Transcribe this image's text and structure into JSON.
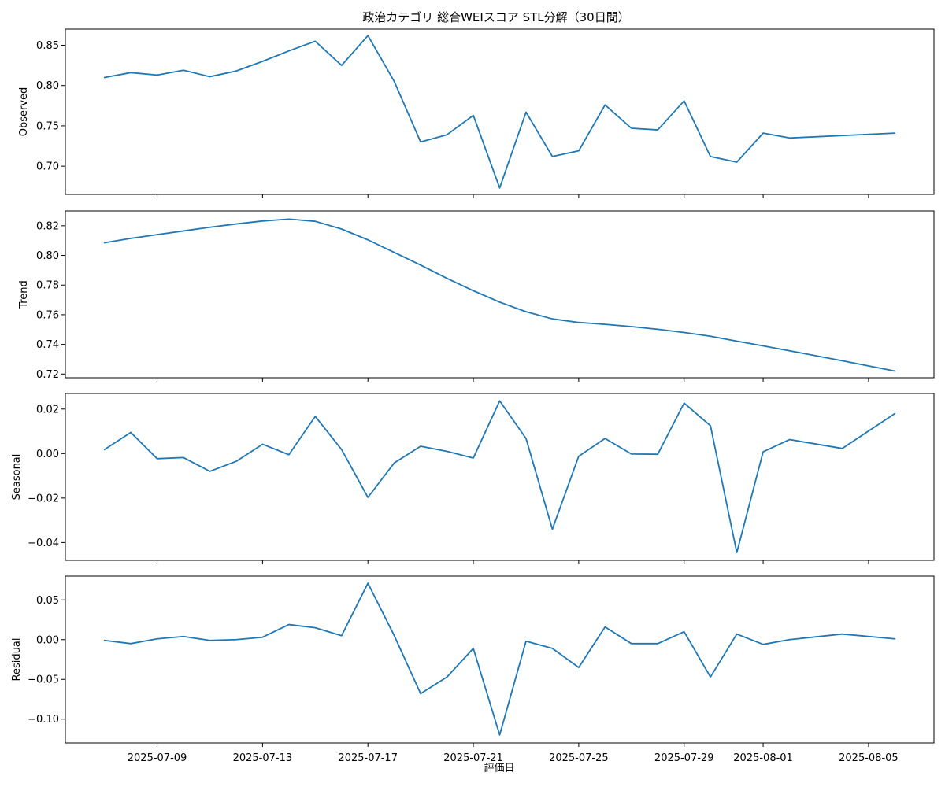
{
  "chart_data": {
    "type": "line",
    "title": "政治カテゴリ 総合WEIスコア STL分解（30日間）",
    "xlabel": "評価日",
    "x_ticks": [
      "2025-07-09",
      "2025-07-13",
      "2025-07-17",
      "2025-07-21",
      "2025-07-25",
      "2025-07-29",
      "2025-08-01",
      "2025-08-05"
    ],
    "x": [
      "2025-07-07",
      "2025-07-08",
      "2025-07-09",
      "2025-07-10",
      "2025-07-11",
      "2025-07-12",
      "2025-07-13",
      "2025-07-14",
      "2025-07-15",
      "2025-07-16",
      "2025-07-17",
      "2025-07-18",
      "2025-07-19",
      "2025-07-20",
      "2025-07-21",
      "2025-07-22",
      "2025-07-23",
      "2025-07-24",
      "2025-07-25",
      "2025-07-26",
      "2025-07-27",
      "2025-07-28",
      "2025-07-29",
      "2025-07-30",
      "2025-07-31",
      "2025-08-01",
      "2025-08-02",
      "2025-08-04",
      "2025-08-06"
    ],
    "panels": [
      {
        "ylabel": "Observed",
        "ylim": [
          0.665,
          0.87
        ],
        "yticks": [
          0.7,
          0.75,
          0.8,
          0.85
        ],
        "ytick_labels": [
          "0.70",
          "0.75",
          "0.80",
          "0.85"
        ],
        "color": "#1f77b4",
        "values": [
          0.81,
          0.816,
          0.813,
          0.819,
          0.811,
          0.818,
          0.83,
          0.843,
          0.855,
          0.825,
          0.862,
          0.805,
          0.73,
          0.739,
          0.763,
          0.673,
          0.767,
          0.712,
          0.719,
          0.776,
          0.747,
          0.745,
          0.781,
          0.712,
          0.705,
          0.741,
          0.735,
          0.738,
          0.741
        ]
      },
      {
        "ylabel": "Trend",
        "ylim": [
          0.7175,
          0.83
        ],
        "yticks": [
          0.72,
          0.74,
          0.76,
          0.78,
          0.8,
          0.82
        ],
        "ytick_labels": [
          "0.72",
          "0.74",
          "0.76",
          "0.78",
          "0.80",
          "0.82"
        ],
        "color": "#1f77b4",
        "values": [
          0.8085,
          0.8115,
          0.814,
          0.8165,
          0.819,
          0.8212,
          0.8232,
          0.8245,
          0.823,
          0.8178,
          0.8105,
          0.802,
          0.7935,
          0.7845,
          0.7762,
          0.7685,
          0.762,
          0.7572,
          0.7548,
          0.7535,
          0.752,
          0.7502,
          0.748,
          0.7455,
          0.7422,
          0.739,
          0.7357,
          0.729,
          0.722
        ]
      },
      {
        "ylabel": "Seasonal",
        "ylim": [
          -0.048,
          0.027
        ],
        "yticks": [
          -0.04,
          -0.02,
          0.0,
          0.02
        ],
        "ytick_labels": [
          "−0.04",
          "−0.02",
          "0.00",
          "0.02"
        ],
        "color": "#1f77b4",
        "values": [
          0.0018,
          0.0095,
          -0.0023,
          -0.0018,
          -0.008,
          -0.0035,
          0.0042,
          -0.0005,
          0.0167,
          0.0018,
          -0.0197,
          -0.0042,
          0.0033,
          0.001,
          -0.002,
          0.0237,
          0.0068,
          -0.034,
          -0.0012,
          0.0068,
          -0.0002,
          -0.0003,
          0.0227,
          0.0125,
          -0.0445,
          0.0008,
          0.0063,
          0.0023,
          0.018
        ]
      },
      {
        "ylabel": "Residual",
        "ylim": [
          -0.13,
          0.08
        ],
        "yticks": [
          -0.1,
          -0.05,
          0.0,
          0.05
        ],
        "ytick_labels": [
          "−0.10",
          "−0.05",
          "0.00",
          "0.05"
        ],
        "color": "#1f77b4",
        "values": [
          -0.001,
          -0.005,
          0.001,
          0.004,
          -0.001,
          0.0,
          0.003,
          0.019,
          0.015,
          0.005,
          0.071,
          0.005,
          -0.068,
          -0.047,
          -0.011,
          -0.12,
          -0.002,
          -0.011,
          -0.035,
          0.016,
          -0.005,
          -0.005,
          0.01,
          -0.047,
          0.007,
          -0.006,
          0.0,
          0.007,
          0.001
        ]
      }
    ]
  }
}
